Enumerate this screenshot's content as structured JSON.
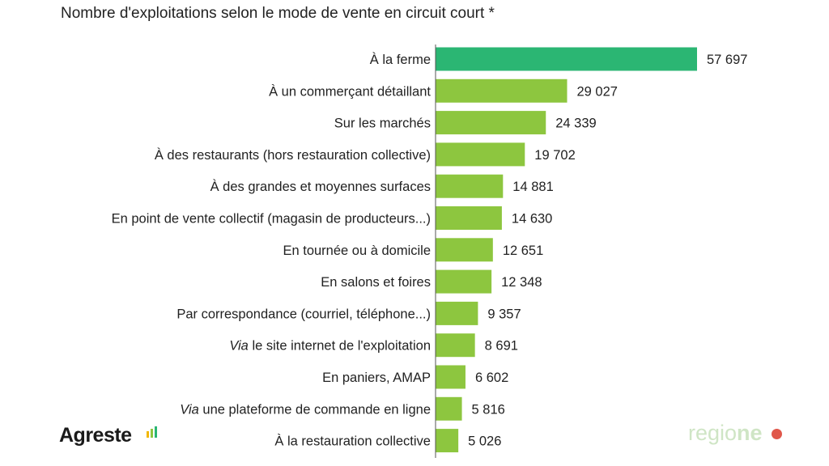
{
  "chart_data": {
    "type": "bar",
    "orientation": "horizontal",
    "title": "Nombre d'exploitations selon le mode de vente en circuit court *",
    "categories": [
      "À la ferme",
      "À un commerçant détaillant",
      "Sur les marchés",
      "À des restaurants (hors restauration collective)",
      "À des grandes et moyennes surfaces",
      "En point de vente collectif (magasin de producteurs...)",
      "En tournée ou à domicile",
      "En salons et foires",
      "Par correspondance (courriel, téléphone...)",
      "Via le site internet de l'exploitation",
      "En paniers, AMAP",
      "Via une plateforme de commande en ligne",
      "À la restauration collective"
    ],
    "italic_prefix": [
      "",
      "",
      "",
      "",
      "",
      "",
      "",
      "",
      "",
      "Via",
      "",
      "Via",
      ""
    ],
    "values": [
      57697,
      29027,
      24339,
      19702,
      14881,
      14630,
      12651,
      12348,
      9357,
      8691,
      6602,
      5816,
      5026
    ],
    "value_labels": [
      "57 697",
      "29 027",
      "24 339",
      "19 702",
      "14 881",
      "14 630",
      "12 651",
      "12 348",
      "9 357",
      "8 691",
      "6 602",
      "5 816",
      "5 026"
    ],
    "colors": {
      "highlight": "#2bb673",
      "default": "#8dc63f"
    },
    "grid": false,
    "legend": "none"
  },
  "logos": {
    "left": "Agreste",
    "right": "regioneo"
  }
}
